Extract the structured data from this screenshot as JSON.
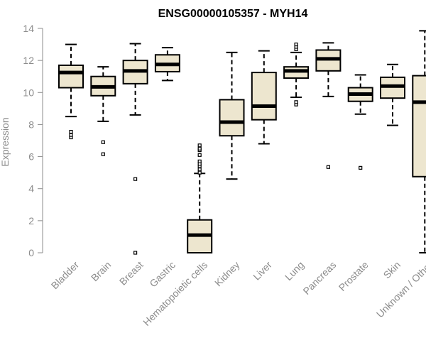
{
  "chart_data": {
    "type": "boxplot",
    "title": "ENSG00000105357 - MYH14",
    "xlabel": "",
    "ylabel": "Expression",
    "ylim": [
      0,
      14
    ],
    "yticks": [
      0,
      2,
      4,
      6,
      8,
      10,
      12,
      14
    ],
    "grid": false,
    "legend": "none",
    "colors": {
      "box_fill": "#ede6cf",
      "box_stroke": "#000000",
      "median": "#000000",
      "axis": "#8c8c8c"
    },
    "categories": [
      "Bladder",
      "Brain",
      "Breast",
      "Gastric",
      "Hematopoietic cells",
      "Kidney",
      "Liver",
      "Lung",
      "Pancreas",
      "Prostate",
      "Skin",
      "Unknown / Other"
    ],
    "boxes": [
      {
        "min": 8.5,
        "q1": 10.3,
        "median": 11.25,
        "q3": 11.7,
        "max": 13.0,
        "outliers": [
          7.2,
          7.35,
          7.55
        ]
      },
      {
        "min": 8.2,
        "q1": 9.8,
        "median": 10.35,
        "q3": 11.0,
        "max": 11.6,
        "outliers": [
          6.15,
          6.9
        ]
      },
      {
        "min": 8.6,
        "q1": 10.55,
        "median": 11.35,
        "q3": 12.0,
        "max": 13.05,
        "outliers": [
          4.6,
          0.0
        ]
      },
      {
        "min": 10.75,
        "q1": 11.3,
        "median": 11.75,
        "q3": 12.35,
        "max": 12.8,
        "outliers": []
      },
      {
        "min": 0.0,
        "q1": 0.0,
        "median": 1.1,
        "q3": 2.05,
        "max": 4.95,
        "outliers": [
          5.0,
          5.2,
          5.4,
          5.55,
          5.7,
          6.1,
          6.4,
          6.5,
          6.7
        ]
      },
      {
        "min": 4.6,
        "q1": 7.3,
        "median": 8.15,
        "q3": 9.55,
        "max": 12.5,
        "outliers": []
      },
      {
        "min": 6.8,
        "q1": 8.3,
        "median": 9.15,
        "q3": 11.25,
        "max": 12.6,
        "outliers": []
      },
      {
        "min": 9.7,
        "q1": 10.9,
        "median": 11.35,
        "q3": 11.6,
        "max": 12.5,
        "outliers": [
          9.25,
          9.4,
          12.7,
          12.85,
          13.0
        ]
      },
      {
        "min": 9.75,
        "q1": 11.35,
        "median": 12.1,
        "q3": 12.65,
        "max": 13.1,
        "outliers": [
          5.35
        ]
      },
      {
        "min": 8.65,
        "q1": 9.45,
        "median": 9.9,
        "q3": 10.3,
        "max": 11.1,
        "outliers": [
          5.3
        ]
      },
      {
        "min": 7.95,
        "q1": 9.65,
        "median": 10.4,
        "q3": 10.95,
        "max": 11.75,
        "outliers": []
      },
      {
        "min": 0.0,
        "q1": 4.75,
        "median": 9.4,
        "q3": 11.05,
        "max": 13.85,
        "outliers": []
      }
    ]
  }
}
